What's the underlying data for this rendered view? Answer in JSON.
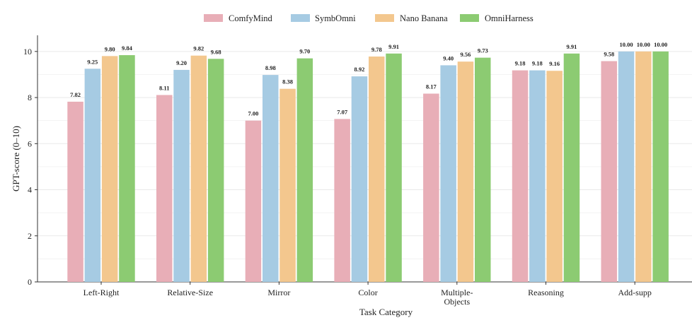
{
  "chart_data": {
    "type": "bar",
    "categories": [
      "Left-Right",
      "Relative-Size",
      "Mirror",
      "Color",
      "Multiple-\nObjects",
      "Reasoning",
      "Add-supp"
    ],
    "series": [
      {
        "name": "ComfyMind",
        "color": "#e8aeb7",
        "values": [
          7.82,
          8.11,
          7.0,
          7.07,
          8.17,
          9.18,
          9.58
        ]
      },
      {
        "name": "SymbOmni",
        "color": "#a6cbe3",
        "values": [
          9.25,
          9.2,
          8.98,
          8.92,
          9.4,
          9.18,
          10.0
        ]
      },
      {
        "name": "Nano Banana",
        "color": "#f3c78e",
        "values": [
          9.8,
          9.82,
          8.38,
          9.78,
          9.56,
          9.16,
          10.0
        ]
      },
      {
        "name": "OmniHarness",
        "color": "#8ccb72",
        "values": [
          9.84,
          9.68,
          9.7,
          9.91,
          9.73,
          9.91,
          10.0
        ]
      }
    ],
    "value_labels": [
      [
        "7.82",
        "8.11",
        "7.00",
        "7.07",
        "8.17",
        "9.18",
        "9.58"
      ],
      [
        "9.25",
        "9.20",
        "8.98",
        "8.92",
        "9.40",
        "9.18",
        "10.00"
      ],
      [
        "9.80",
        "9.82",
        "8.38",
        "9.78",
        "9.56",
        "9.16",
        "10.00"
      ],
      [
        "9.84",
        "9.68",
        "9.70",
        "9.91",
        "9.73",
        "9.91",
        "10.00"
      ]
    ],
    "title": "",
    "xlabel": "Task Category",
    "ylabel": "GPT-score (0–10)",
    "ylim": [
      0,
      10.7
    ],
    "yticks": [
      0,
      2,
      4,
      6,
      8,
      10
    ],
    "grid": "horizontal",
    "legend_position": "top-center"
  }
}
